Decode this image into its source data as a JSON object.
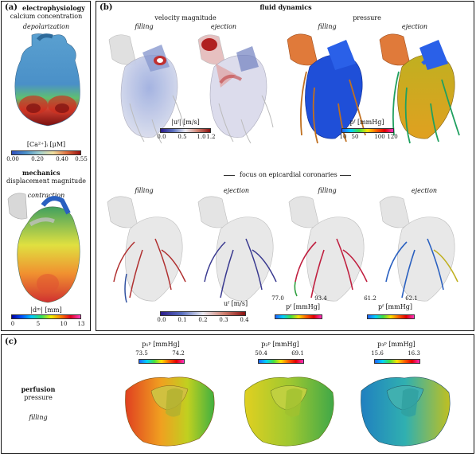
{
  "panel_a": {
    "label": "(a)",
    "electro": {
      "title": "electrophysiology",
      "subtitle": "calcium concentration",
      "phase": "depolarization",
      "colorbar_label": "[Ca²⁺]ᵢ [μM]",
      "ticks": [
        "0.00",
        "0.20",
        "0.40",
        "0.55"
      ]
    },
    "mechanics": {
      "title": "mechanics",
      "subtitle": "displacement magnitude",
      "phase": "contraction",
      "colorbar_label": "|dᵐ| [mm]",
      "ticks": [
        "0",
        "5",
        "10",
        "13"
      ]
    }
  },
  "panel_b": {
    "label": "(b)",
    "title": "fluid dynamics",
    "velocity": {
      "title": "velocity magnitude",
      "phases": [
        "filling",
        "ejection"
      ],
      "colorbar_label": "|uᶠ| [m/s]",
      "ticks": [
        "0.0",
        "0.5",
        "1.0",
        "1.2"
      ]
    },
    "pressure": {
      "title": "pressure",
      "phases": [
        "filling",
        "ejection"
      ],
      "colorbar_label": "pᶠ [mmHg]",
      "ticks": [
        "10",
        "50",
        "100",
        "120"
      ]
    },
    "focus_label": "focus on epicardial coronaries",
    "coronary": {
      "phases": [
        "filling",
        "ejection",
        "filling",
        "ejection"
      ],
      "velocity_label": "uᶠ [m/s]",
      "velocity_ticks": [
        "0.0",
        "0.1",
        "0.2",
        "0.3",
        "0.4"
      ],
      "pressure_filling_label": "pᶠ [mmHg]",
      "pressure_filling_ticks": [
        "77.0",
        "93.4"
      ],
      "pressure_ejection_label": "pᶠ [mmHg]",
      "pressure_ejection_ticks": [
        "61.2",
        "62.1"
      ]
    }
  },
  "panel_c": {
    "label": "(c)",
    "title": "perfusion",
    "subtitle": "pressure",
    "phase": "filling",
    "compartments": [
      {
        "label": "p₁ᵖ [mmHg]",
        "ticks": [
          "73.5",
          "74.2"
        ]
      },
      {
        "label": "p₂ᵖ [mmHg]",
        "ticks": [
          "50.4",
          "69.1"
        ]
      },
      {
        "label": "p₃ᵖ [mmHg]",
        "ticks": [
          "15.6",
          "16.3"
        ]
      }
    ]
  },
  "colors": {
    "heart_blue": "#4a90c8",
    "vessel_blue": "#1f4fd8",
    "aorta_orange": "#e07a3a",
    "ghost_gray": "#d8d8d8"
  }
}
